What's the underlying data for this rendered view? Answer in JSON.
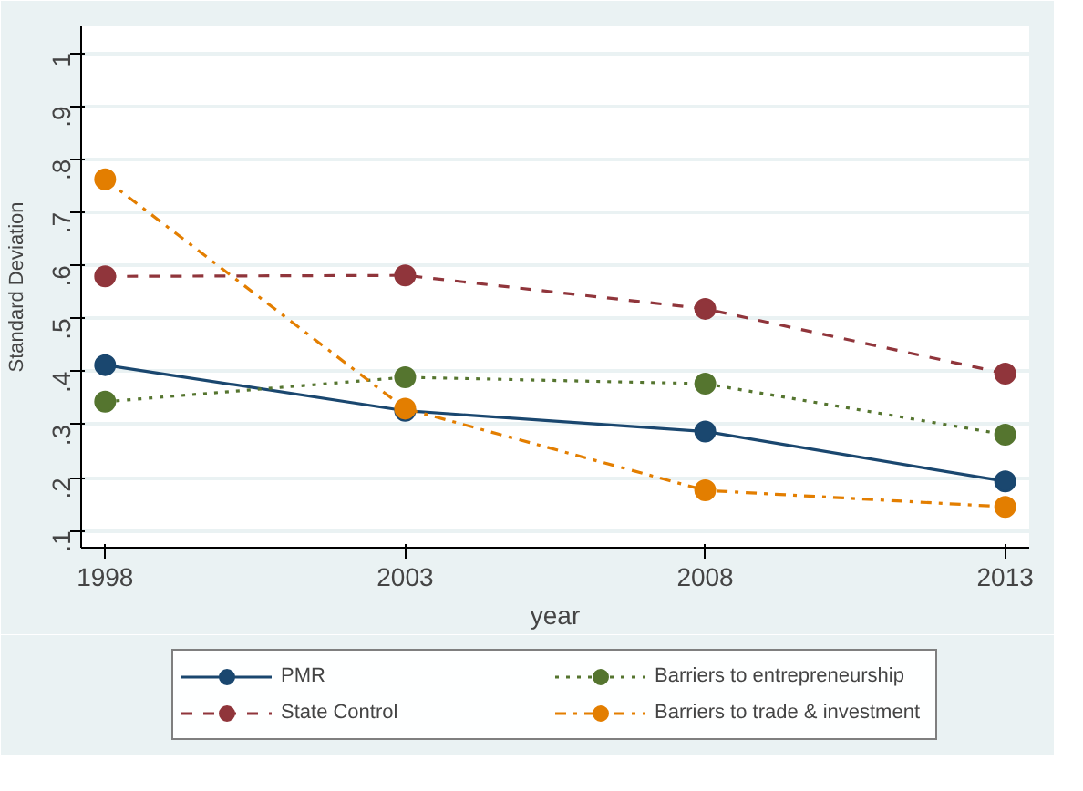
{
  "chart_data": {
    "type": "line",
    "xlabel": "year",
    "ylabel": "Standard Deviation",
    "x": [
      1998,
      2003,
      2008,
      2013
    ],
    "series": [
      {
        "name": "PMR",
        "color": "#1a476f",
        "line_style": "solid",
        "values": [
          0.412,
          0.326,
          0.287,
          0.193
        ]
      },
      {
        "name": "State Control",
        "color": "#90353b",
        "line_style": "dashed",
        "values": [
          0.579,
          0.581,
          0.518,
          0.396
        ]
      },
      {
        "name": "Barriers to entrepreneurship",
        "color": "#55752f",
        "line_style": "dotted",
        "values": [
          0.343,
          0.389,
          0.377,
          0.281
        ]
      },
      {
        "name": "Barriers to trade & investment",
        "color": "#e37e00",
        "line_style": "dashdot",
        "values": [
          0.762,
          0.33,
          0.176,
          0.145
        ]
      }
    ],
    "xlim": [
      1997.6,
      2013.4
    ],
    "xticks": [
      1998,
      2003,
      2008,
      2013
    ],
    "ylim": [
      0.068,
      1.05
    ],
    "yticks": [
      {
        "value": 0.1,
        "label": ".1"
      },
      {
        "value": 0.2,
        "label": ".2"
      },
      {
        "value": 0.3,
        "label": ".3"
      },
      {
        "value": 0.4,
        "label": ".4"
      },
      {
        "value": 0.5,
        "label": ".5"
      },
      {
        "value": 0.6,
        "label": ".6"
      },
      {
        "value": 0.7,
        "label": ".7"
      },
      {
        "value": 0.8,
        "label": ".8"
      },
      {
        "value": 0.9,
        "label": ".9"
      },
      {
        "value": 1,
        "label": "1"
      }
    ],
    "grid": "y",
    "legend": "bottom",
    "marker": "circle"
  }
}
